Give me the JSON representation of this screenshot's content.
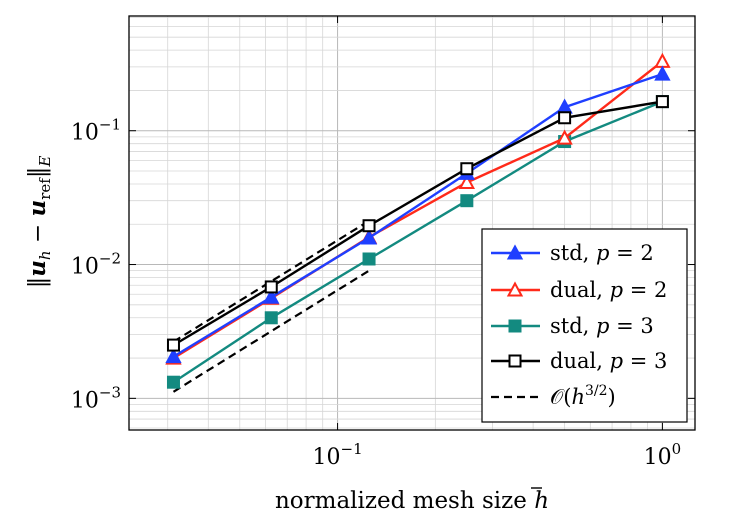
{
  "chart_data": {
    "type": "line",
    "xscale": "log",
    "yscale": "log",
    "xlim": [
      0.0228,
      1.26
    ],
    "ylim": [
      0.00058,
      0.72
    ],
    "xticks": [
      {
        "value": 0.1,
        "base": "10",
        "exp": "−1"
      },
      {
        "value": 1,
        "base": "10",
        "exp": "0"
      }
    ],
    "yticks": [
      {
        "value": 0.001,
        "base": "10",
        "exp": "−3"
      },
      {
        "value": 0.01,
        "base": "10",
        "exp": "−2"
      },
      {
        "value": 0.1,
        "base": "10",
        "exp": "−1"
      }
    ],
    "xlabel": "normalized mesh size h̄",
    "ylabel": "‖u_h − u_ref‖_E",
    "grid": true,
    "legend_position": "bottom-right",
    "x": [
      0.03125,
      0.0625,
      0.125,
      0.25,
      0.5,
      1.0
    ],
    "series": [
      {
        "name": "std, p = 2",
        "color": "#1f3fff",
        "marker": "triangle-filled",
        "values": [
          0.00205,
          0.0057,
          0.0158,
          0.048,
          0.15,
          0.265
        ]
      },
      {
        "name": "dual, p = 2",
        "color": "#ff2a1a",
        "marker": "triangle-open",
        "values": [
          0.002,
          0.0056,
          0.016,
          0.041,
          0.088,
          0.33
        ]
      },
      {
        "name": "std, p = 3",
        "color": "#138a80",
        "marker": "square-filled",
        "values": [
          0.00132,
          0.004,
          0.011,
          0.03,
          0.083,
          0.165
        ]
      },
      {
        "name": "dual, p = 3",
        "color": "#000000",
        "marker": "square-open",
        "values": [
          0.0025,
          0.0068,
          0.0195,
          0.052,
          0.125,
          0.165
        ]
      }
    ],
    "reference_lines": [
      {
        "name": "O(h^{3/2})",
        "style": "dashed",
        "color": "#000000",
        "x": [
          0.03125,
          0.125
        ],
        "values": [
          0.00265,
          0.0212
        ]
      },
      {
        "name": "",
        "style": "dashed",
        "color": "#000000",
        "x": [
          0.03125,
          0.125
        ],
        "values": [
          0.00112,
          0.009
        ]
      }
    ],
    "legend": [
      {
        "prefix": "std, ",
        "var": "p",
        "value": "= 2"
      },
      {
        "prefix": "dual, ",
        "var": "p",
        "value": "= 2"
      },
      {
        "prefix": "std, ",
        "var": "p",
        "value": "= 3"
      },
      {
        "prefix": "dual, ",
        "var": "p",
        "value": "= 3"
      },
      {
        "prefix": "𝒪(",
        "var": "h",
        "value": "3/2",
        "suffix": ")"
      }
    ]
  }
}
